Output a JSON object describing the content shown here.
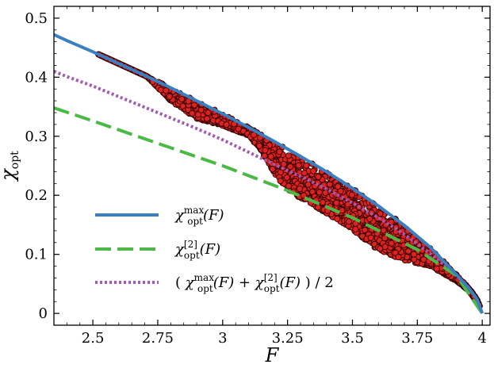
{
  "chart_data": {
    "type": "scatter",
    "xlabel": "F",
    "ylabel": "χopt",
    "xlim": [
      2.35,
      4.03
    ],
    "ylim": [
      -0.02,
      0.52
    ],
    "xticks": [
      2.5,
      2.75,
      3.0,
      3.25,
      3.5,
      3.75,
      4.0
    ],
    "xtick_labels": [
      "2.5",
      "2.75",
      "3",
      "3.25",
      "3.5",
      "3.75",
      "4"
    ],
    "yticks": [
      0,
      0.1,
      0.2,
      0.3,
      0.4,
      0.5
    ],
    "ytick_labels": [
      "0",
      "0.1",
      "0.2",
      "0.3",
      "0.4",
      "0.5"
    ],
    "legend_position": "lower-left",
    "series": [
      {
        "name": "χ_opt^max(F)",
        "style": "solid",
        "color": "#3a7fc1",
        "x": [
          2.35,
          2.4,
          2.5,
          2.6,
          2.7,
          2.8,
          2.9,
          3.0,
          3.1,
          3.2,
          3.3,
          3.4,
          3.5,
          3.6,
          3.7,
          3.8,
          3.9,
          3.95,
          3.98,
          4.0
        ],
        "y": [
          0.472,
          0.462,
          0.443,
          0.423,
          0.403,
          0.382,
          0.36,
          0.338,
          0.315,
          0.291,
          0.266,
          0.24,
          0.212,
          0.182,
          0.149,
          0.112,
          0.066,
          0.042,
          0.024,
          0.0
        ]
      },
      {
        "name": "χ_opt^[2](F)",
        "style": "dashed",
        "color": "#4cb847",
        "x": [
          2.35,
          2.5,
          2.75,
          3.0,
          3.25,
          3.5,
          3.75,
          3.9,
          4.0
        ],
        "y": [
          0.348,
          0.326,
          0.288,
          0.25,
          0.208,
          0.162,
          0.108,
          0.064,
          0.0
        ]
      },
      {
        "name": "( χ_opt^max(F) + χ_opt^[2](F) ) / 2",
        "style": "dotted",
        "color": "#a25bb5",
        "x": [
          2.35,
          2.4,
          2.5,
          2.6,
          2.7,
          2.8,
          2.9,
          3.0,
          3.1,
          3.2,
          3.3,
          3.4,
          3.5,
          3.6,
          3.7,
          3.8,
          3.9,
          3.95,
          3.98,
          4.0
        ],
        "y": [
          0.41,
          0.401,
          0.385,
          0.367,
          0.349,
          0.331,
          0.313,
          0.294,
          0.273,
          0.252,
          0.232,
          0.211,
          0.187,
          0.162,
          0.134,
          0.101,
          0.066,
          0.042,
          0.024,
          0.0
        ]
      }
    ],
    "scatter_region": {
      "color": "#dd2222",
      "edge_color": "#300000",
      "x_range": [
        2.52,
        3.99
      ],
      "lower_bound": {
        "x": [
          2.52,
          2.6,
          2.7,
          2.8,
          2.9,
          3.0,
          3.1,
          3.15,
          3.2,
          3.25,
          3.3,
          3.4,
          3.5,
          3.6,
          3.7,
          3.8,
          3.9,
          3.95,
          3.99
        ],
        "y": [
          0.44,
          0.425,
          0.405,
          0.36,
          0.33,
          0.318,
          0.301,
          0.275,
          0.236,
          0.21,
          0.195,
          0.17,
          0.142,
          0.107,
          0.09,
          0.08,
          0.055,
          0.038,
          0.012
        ]
      }
    },
    "legend": [
      {
        "key": "max",
        "base": "χ",
        "sup": "max",
        "sub": "opt",
        "tail": "(F)"
      },
      {
        "key": "two",
        "base": "χ",
        "sup": "[2]",
        "sub": "opt",
        "tail": "(F)"
      },
      {
        "key": "avg",
        "label_prefix": "( ",
        "label_mid": " + ",
        "label_suffix": " ) / 2"
      }
    ]
  }
}
